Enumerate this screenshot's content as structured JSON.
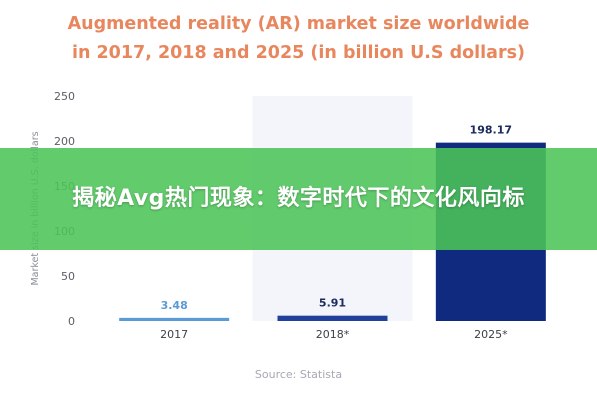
{
  "title_lines": [
    "Augmented reality (AR) market size worldwide",
    "in 2017, 2018 and 2025 (in billion U.S dollars)"
  ],
  "banner_text": "揭秘Avg热门现象：数字时代下的文化风向标",
  "source": "Source: Statista",
  "colors": {
    "title": "#e8875e",
    "bar_2017": "#5b9bd5",
    "bar_2018": "#21409a",
    "bar_2025": "#0f2a7e",
    "highlight_column": "#f3f5fa",
    "banner": "#4cc458"
  },
  "chart_data": {
    "type": "bar",
    "categories": [
      "2017",
      "2018*",
      "2025*"
    ],
    "values": [
      3.48,
      5.91,
      198.17
    ],
    "value_labels": [
      "3.48",
      "5.91",
      "198.17"
    ],
    "ylabel": "Market size in billion U.S. dollars",
    "ylim": [
      0,
      250
    ],
    "yticks": [
      0,
      50,
      100,
      150,
      200,
      250
    ],
    "grid": false,
    "highlighted_category": "2018*"
  }
}
